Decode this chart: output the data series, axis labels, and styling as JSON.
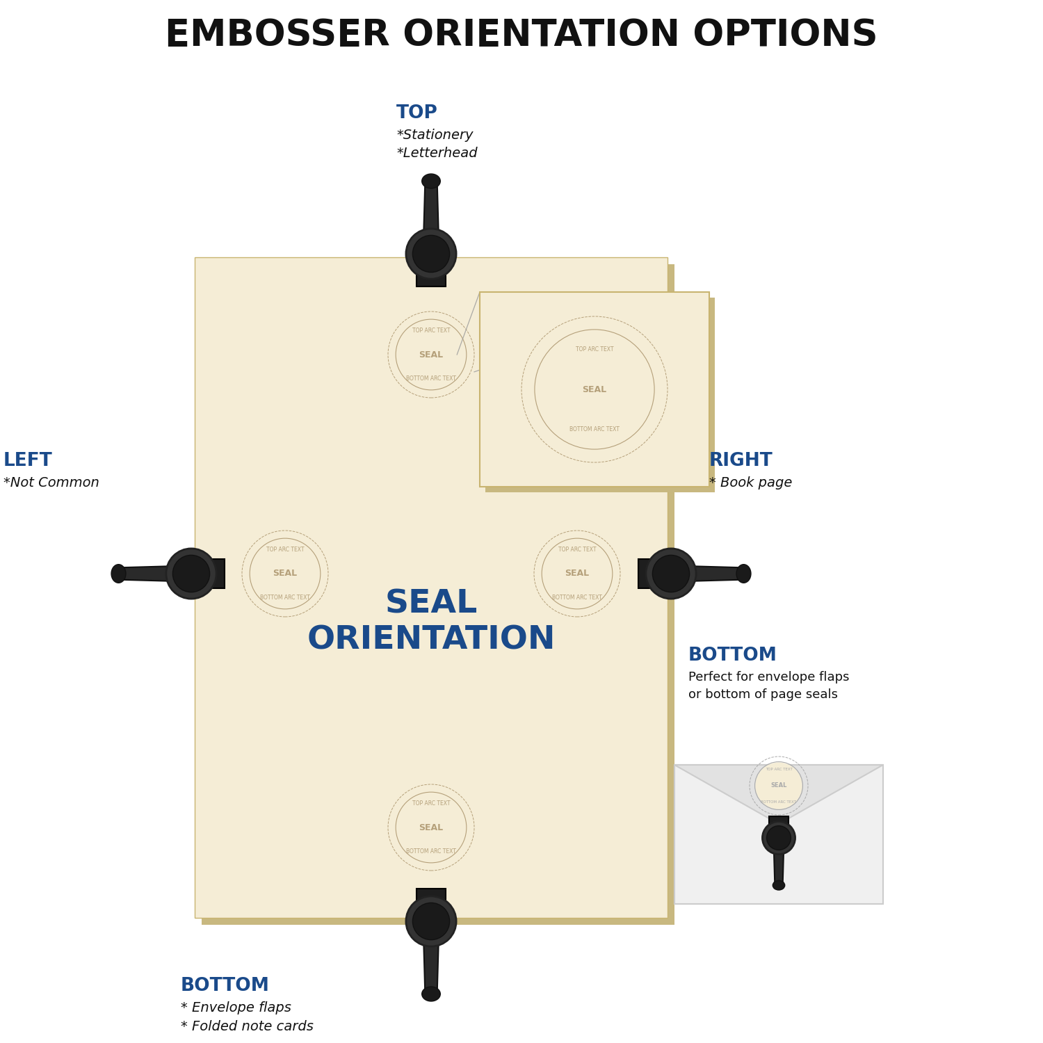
{
  "title": "EMBOSSER ORIENTATION OPTIONS",
  "title_color": "#111111",
  "title_fontsize": 38,
  "bg_color": "#ffffff",
  "paper_color": "#f5edd6",
  "paper_shadow_color": "#c8b880",
  "seal_text_color": "#b5a07a",
  "center_text": "SEAL\nORIENTATION",
  "center_text_color": "#1a4a8a",
  "labels": {
    "TOP": {
      "title": "TOP",
      "sub": "*Stationery\n*Letterhead",
      "title_color": "#1a4a8a",
      "sub_color": "#111111"
    },
    "BOTTOM": {
      "title": "BOTTOM",
      "sub": "* Envelope flaps\n* Folded note cards",
      "title_color": "#1a4a8a",
      "sub_color": "#111111"
    },
    "LEFT": {
      "title": "LEFT",
      "sub": "*Not Common",
      "title_color": "#1a4a8a",
      "sub_color": "#111111"
    },
    "RIGHT": {
      "title": "RIGHT",
      "sub": "* Book page",
      "title_color": "#1a4a8a",
      "sub_color": "#111111"
    },
    "BOTTOM_RIGHT": {
      "title": "BOTTOM",
      "sub": "Perfect for envelope flaps\nor bottom of page seals",
      "title_color": "#1a4a8a",
      "sub_color": "#111111"
    }
  }
}
